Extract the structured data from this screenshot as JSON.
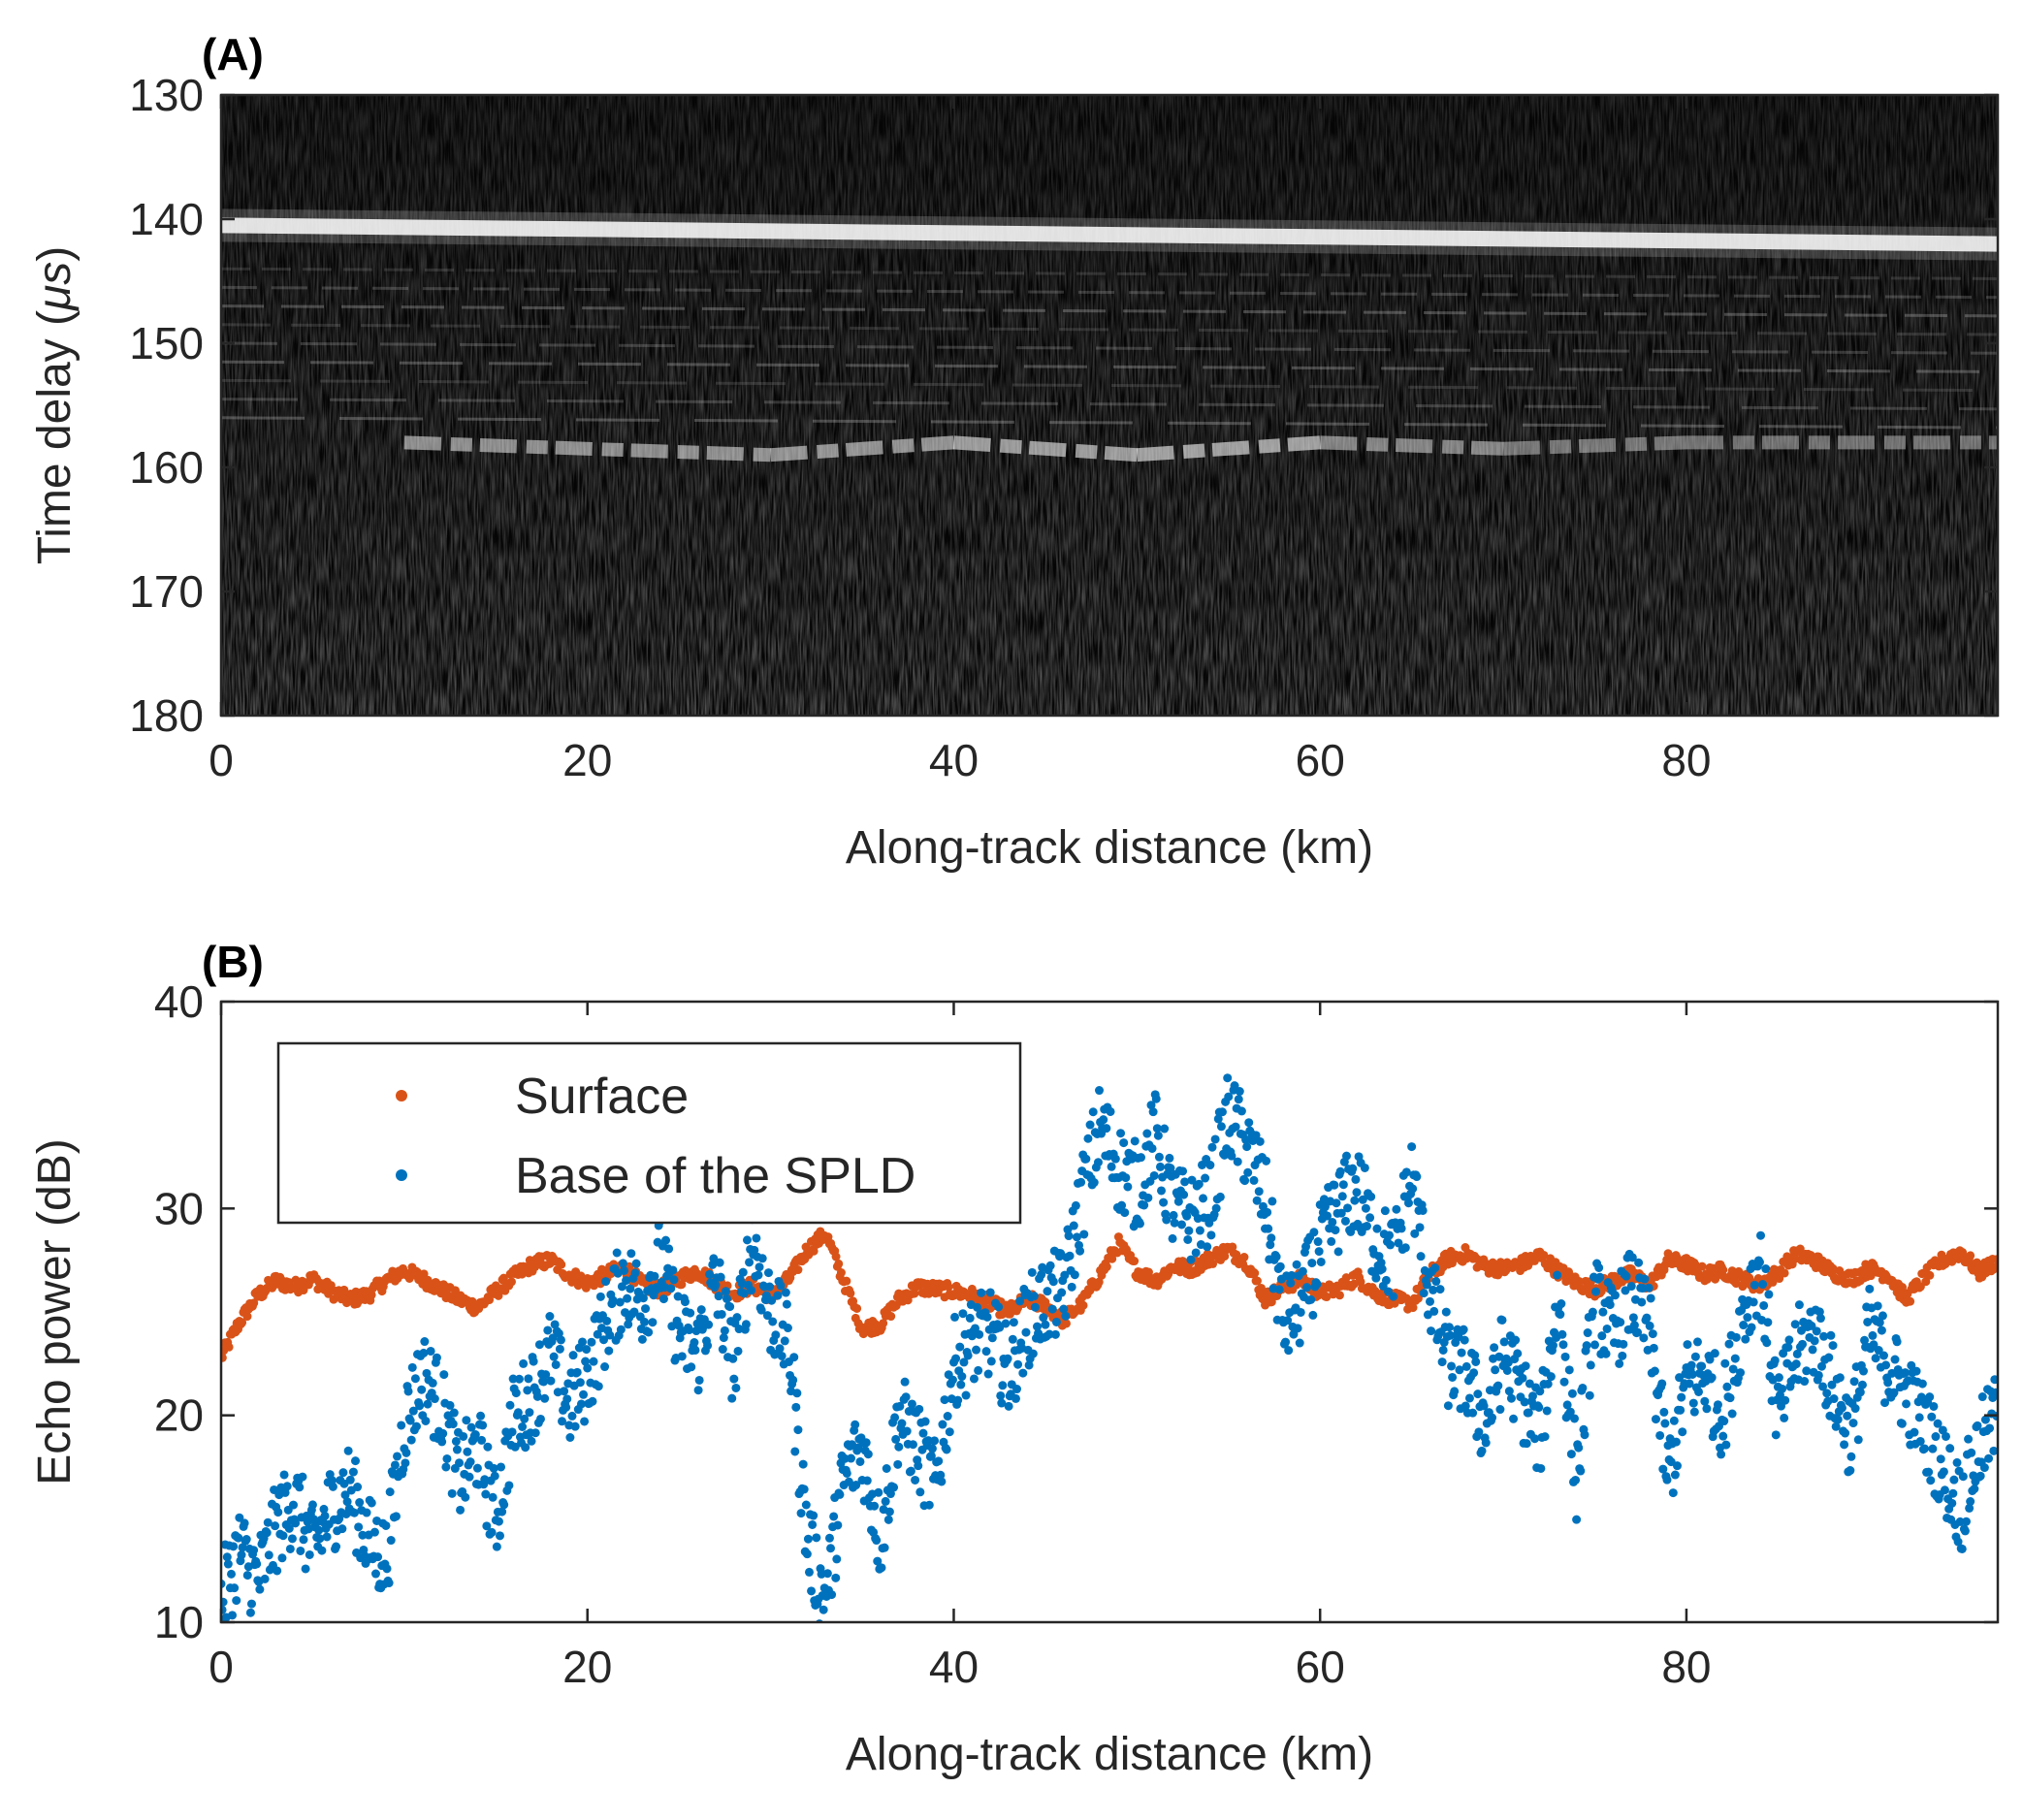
{
  "chart_data": [
    {
      "type": "heatmap",
      "panel_label": "(A)",
      "title": "",
      "xlabel": "Along-track distance (km)",
      "ylabel_prefix": "Time delay (",
      "ylabel_unit": "μs",
      "ylabel_suffix": ")",
      "xlim": [
        0,
        97
      ],
      "ylim": [
        130,
        180
      ],
      "y_reversed": true,
      "xticks": [
        0,
        20,
        40,
        60,
        80
      ],
      "yticks": [
        130,
        140,
        150,
        160,
        170,
        180
      ],
      "colormap": "gray",
      "features": {
        "surface_echo": {
          "x": [
            0,
            97
          ],
          "time_delay_us": [
            140.5,
            142.0
          ],
          "intensity": 0.85
        },
        "basal_echo": {
          "x": [
            10,
            30,
            40,
            50,
            60,
            70,
            80,
            97
          ],
          "time_delay_us": [
            158.0,
            159.0,
            158.0,
            159.0,
            158.0,
            158.5,
            158.0,
            158.0
          ],
          "intensity": [
            0.55,
            0.7,
            0.6,
            0.8,
            0.65,
            0.5,
            0.5,
            0.45
          ]
        },
        "noise_floor_below_us": 160
      }
    },
    {
      "type": "scatter",
      "panel_label": "(B)",
      "title": "",
      "xlabel": "Along-track distance (km)",
      "ylabel": "Echo power (dB)",
      "xlim": [
        0,
        97
      ],
      "ylim": [
        10,
        40
      ],
      "xticks": [
        0,
        20,
        40,
        60,
        80
      ],
      "yticks": [
        10,
        20,
        30,
        40
      ],
      "legend_position": "top-left",
      "series": [
        {
          "name": "Surface",
          "color": "#d95319",
          "x": [
            0,
            1,
            2,
            3,
            4,
            5,
            6,
            7,
            8,
            9,
            10,
            11,
            12,
            13,
            14,
            15,
            16,
            17,
            18,
            19,
            20,
            21,
            22,
            23,
            24,
            25,
            26,
            27,
            28,
            29,
            30,
            31,
            32,
            33,
            34,
            35,
            36,
            37,
            38,
            39,
            40,
            41,
            42,
            43,
            44,
            45,
            46,
            47,
            48,
            49,
            50,
            51,
            52,
            53,
            54,
            55,
            56,
            57,
            58,
            59,
            60,
            61,
            62,
            63,
            64,
            65,
            66,
            67,
            68,
            69,
            70,
            71,
            72,
            73,
            74,
            75,
            76,
            77,
            78,
            79,
            80,
            81,
            82,
            83,
            84,
            85,
            86,
            87,
            88,
            89,
            90,
            91,
            92,
            93,
            94,
            95,
            96,
            97
          ],
          "y": [
            22.8,
            24.5,
            25.8,
            26.5,
            26.2,
            26.6,
            26.0,
            25.6,
            25.8,
            26.5,
            27.0,
            26.6,
            26.1,
            25.6,
            25.2,
            26.0,
            26.7,
            27.3,
            27.5,
            26.8,
            26.4,
            26.8,
            27.2,
            26.3,
            26.1,
            26.6,
            27.0,
            26.4,
            25.9,
            26.3,
            25.8,
            26.6,
            28.0,
            28.8,
            26.5,
            24.2,
            24.4,
            25.6,
            26.2,
            26.1,
            26.0,
            25.8,
            25.4,
            25.0,
            25.6,
            25.3,
            24.6,
            25.4,
            26.8,
            28.3,
            27.0,
            26.5,
            27.2,
            27.1,
            27.6,
            28.0,
            27.4,
            25.6,
            26.2,
            26.6,
            25.9,
            26.1,
            26.7,
            25.9,
            25.6,
            25.4,
            26.8,
            27.6,
            27.8,
            27.2,
            27.1,
            27.3,
            27.7,
            27.0,
            26.4,
            26.1,
            26.5,
            26.8,
            26.3,
            27.5,
            27.3,
            26.8,
            27.0,
            26.6,
            26.3,
            26.9,
            27.8,
            27.5,
            26.9,
            26.6,
            27.1,
            26.8,
            25.6,
            26.7,
            27.5,
            27.9,
            26.9,
            27.5
          ]
        },
        {
          "name": "Base of the SPLD",
          "color": "#0072bd",
          "x": [
            0,
            1,
            2,
            3,
            4,
            5,
            6,
            7,
            8,
            9,
            10,
            11,
            12,
            13,
            14,
            15,
            16,
            17,
            18,
            19,
            20,
            21,
            22,
            23,
            24,
            25,
            26,
            27,
            28,
            29,
            30,
            31,
            32,
            33,
            34,
            35,
            36,
            37,
            38,
            39,
            40,
            41,
            42,
            43,
            44,
            45,
            46,
            47,
            48,
            49,
            50,
            51,
            52,
            53,
            54,
            55,
            56,
            57,
            58,
            59,
            60,
            61,
            62,
            63,
            64,
            65,
            66,
            67,
            68,
            69,
            70,
            71,
            72,
            73,
            74,
            75,
            76,
            77,
            78,
            79,
            80,
            81,
            82,
            83,
            84,
            85,
            86,
            87,
            88,
            89,
            90,
            91,
            92,
            93,
            94,
            95,
            96,
            97
          ],
          "y": [
            11.0,
            13.5,
            12.0,
            14.5,
            16.0,
            13.5,
            15.5,
            16.5,
            14.0,
            13.0,
            19.5,
            22.0,
            20.5,
            17.0,
            18.5,
            15.0,
            20.0,
            21.0,
            23.0,
            20.5,
            22.0,
            24.5,
            26.5,
            25.5,
            27.5,
            24.0,
            23.0,
            26.5,
            22.5,
            28.5,
            25.0,
            23.5,
            14.0,
            11.0,
            17.0,
            18.5,
            14.0,
            20.0,
            18.5,
            16.5,
            22.5,
            23.5,
            24.0,
            22.0,
            24.5,
            25.5,
            26.0,
            30.5,
            34.0,
            32.0,
            31.0,
            33.5,
            30.0,
            29.5,
            30.5,
            34.5,
            33.0,
            30.5,
            24.5,
            25.5,
            28.0,
            30.0,
            31.0,
            28.5,
            27.5,
            31.5,
            26.0,
            22.5,
            22.0,
            19.5,
            23.0,
            21.0,
            19.0,
            26.0,
            17.0,
            25.5,
            24.0,
            26.0,
            24.0,
            17.0,
            21.5,
            22.0,
            20.0,
            24.5,
            27.5,
            20.0,
            23.0,
            24.0,
            21.5,
            19.0,
            24.0,
            22.5,
            21.0,
            19.5,
            17.5,
            15.5,
            18.5,
            20.0
          ]
        }
      ]
    }
  ]
}
